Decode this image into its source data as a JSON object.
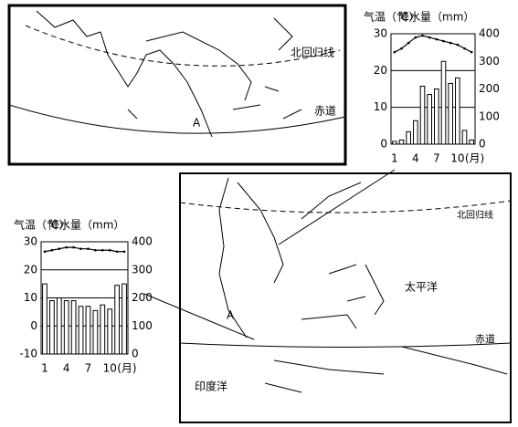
{
  "chart_data": [
    {
      "type": "climograph",
      "y_label": "气温（℃）",
      "y2_label": "降水量（mm）",
      "x_unit": "(月)",
      "categories": [
        "1",
        null,
        null,
        "4",
        null,
        null,
        "7",
        null,
        null,
        "10",
        null,
        null
      ],
      "ylim": [
        0,
        30
      ],
      "yticks": [
        0,
        10,
        20,
        30
      ],
      "y2lim": [
        0,
        400
      ],
      "y2ticks": [
        0,
        100,
        200,
        300,
        400
      ],
      "grid": true,
      "series": [
        {
          "type": "line",
          "color": "#000000",
          "values": [
            25,
            26,
            27.5,
            29,
            29.5,
            29,
            28.5,
            28,
            27.5,
            27,
            26,
            25
          ]
        },
        {
          "type": "bar",
          "axis": "y2",
          "color": "#ffffff",
          "values": [
            10,
            15,
            45,
            85,
            210,
            180,
            200,
            300,
            220,
            240,
            50,
            15
          ]
        }
      ]
    },
    {
      "type": "climograph",
      "y_label": "气温（℃）",
      "y2_label": "降水量（mm）",
      "x_unit": "(月)",
      "categories": [
        "1",
        null,
        null,
        "4",
        null,
        null,
        "7",
        null,
        null,
        "10",
        null,
        null
      ],
      "ylim": [
        -10,
        30
      ],
      "yticks": [
        -10,
        0,
        10,
        20,
        30
      ],
      "y2lim": [
        0,
        400
      ],
      "y2ticks": [
        0,
        100,
        200,
        300,
        400
      ],
      "grid": true,
      "series": [
        {
          "type": "line",
          "color": "#000000",
          "values": [
            26.5,
            27,
            27.5,
            28,
            28,
            27.5,
            27.5,
            27,
            27,
            27,
            26.5,
            26.5
          ]
        },
        {
          "type": "bar",
          "axis": "y2",
          "color": "#ffffff",
          "values": [
            250,
            190,
            200,
            190,
            190,
            170,
            170,
            155,
            175,
            160,
            245,
            250
          ]
        }
      ]
    }
  ],
  "top_map": {
    "tropic": "北回归线",
    "equator": "赤道",
    "point": "A"
  },
  "bottom_map": {
    "tropic": "北回归线",
    "equator": "赤道",
    "point": "A",
    "ocean_east": "太平洋",
    "ocean_west": "印度洋"
  }
}
